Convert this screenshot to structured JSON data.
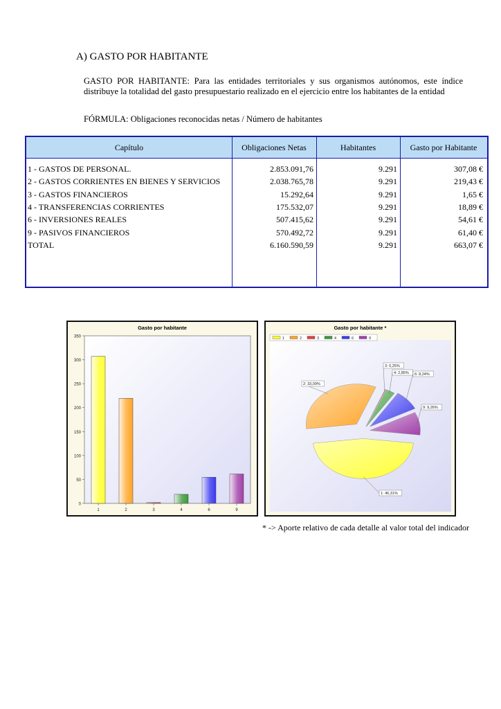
{
  "heading": "A) GASTO POR HABITANTE",
  "description": "GASTO POR HABITANTE: Para las entidades territoriales y sus organismos autónomos, este índice distribuye la totalidad del gasto presupuestario realizado en el ejercicio entre los habitantes de la entidad",
  "formula": "FÓRMULA: Obligaciones reconocidas netas / Número de habitantes",
  "table": {
    "headers": [
      "Capítulo",
      "Obligaciones Netas",
      "Habitantes",
      "Gasto por Habitante"
    ],
    "rows": [
      [
        "1 - GASTOS DE PERSONAL.",
        "2.853.091,76",
        "9.291",
        "307,08 €"
      ],
      [
        "2 - GASTOS CORRIENTES EN BIENES Y SERVICIOS",
        "2.038.765,78",
        "9.291",
        "219,43 €"
      ],
      [
        "3 - GASTOS FINANCIEROS",
        "15.292,64",
        "9.291",
        "1,65 €"
      ],
      [
        "4 - TRANSFERENCIAS CORRIENTES",
        "175.532,07",
        "9.291",
        "18,89 €"
      ],
      [
        "6 - INVERSIONES REALES",
        "507.415,62",
        "9.291",
        "54,61 €"
      ],
      [
        "9 - PASIVOS FINANCIEROS",
        "570.492,72",
        "9.291",
        "61,40 €"
      ],
      [
        "TOTAL",
        "6.160.590,59",
        "9.291",
        "663,07 €"
      ]
    ]
  },
  "chart_data": [
    {
      "type": "bar",
      "title": "Gasto por habitante",
      "categories": [
        "1",
        "2",
        "3",
        "4",
        "6",
        "9"
      ],
      "values": [
        307.08,
        219.43,
        1.65,
        18.89,
        54.61,
        61.4
      ],
      "ylim": [
        0,
        350
      ],
      "yticks": [
        "0",
        "50",
        "100",
        "150",
        "200",
        "250",
        "300",
        "350"
      ],
      "colors": [
        "#ffff33",
        "#ffa528",
        "#e04040",
        "#3a9a3a",
        "#3a3af0",
        "#a040a8"
      ],
      "grid": false
    },
    {
      "type": "pie",
      "title": "Gasto por habitante *",
      "legend": [
        "1",
        "2",
        "3",
        "4",
        "6",
        "9"
      ],
      "legend_position": "top-left",
      "values": [
        46.31,
        33.09,
        0.25,
        2.85,
        8.24,
        9.26
      ],
      "labels": [
        "1: 46,31%",
        "2: 33,09%",
        "3: 0,25%",
        "4: 2,85%",
        "6: 8,24%",
        "9: 9,26%"
      ],
      "colors": [
        "#ffff33",
        "#ffa528",
        "#e04040",
        "#3a9a3a",
        "#3a3af0",
        "#a040a8"
      ]
    }
  ],
  "footnote": "* -> Aporte relativo de cada detalle al valor total del indicador"
}
